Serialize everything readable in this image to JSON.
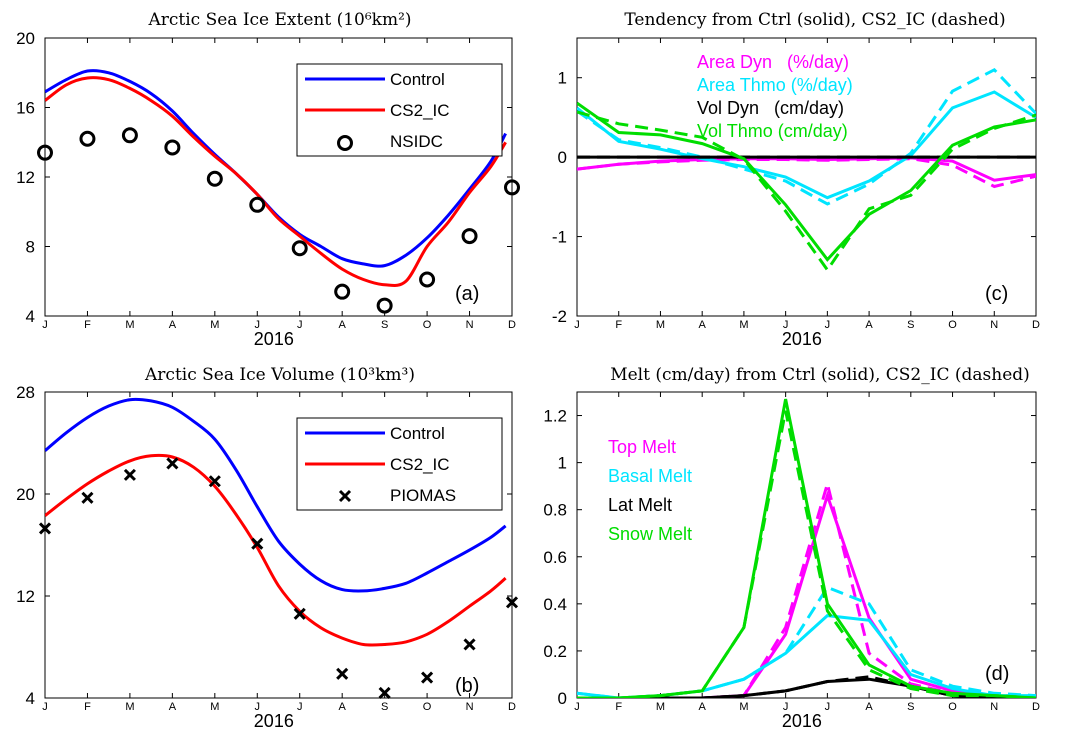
{
  "chart_data": [
    {
      "id": "a",
      "type": "line",
      "title": "Arctic Sea Ice Extent (10⁶km²)",
      "panel_label": "(a)",
      "xlabel": "2016",
      "month_ticks": [
        "J",
        "F",
        "M",
        "A",
        "M",
        "J",
        "J",
        "A",
        "S",
        "O",
        "N",
        "D"
      ],
      "xlim": [
        0,
        11
      ],
      "ylim": [
        4,
        20
      ],
      "yticks": [
        4,
        8,
        12,
        16,
        20
      ],
      "grid": false,
      "legend_placement": "top-right",
      "series": [
        {
          "name": "Control",
          "style": "line",
          "color": "#0000ff",
          "x": [
            0,
            0.5,
            1,
            1.5,
            2,
            2.5,
            3,
            3.5,
            4,
            4.5,
            5,
            5.5,
            6,
            6.5,
            7,
            7.5,
            8,
            8.5,
            9,
            9.5,
            10,
            10.5,
            10.85
          ],
          "y": [
            16.9,
            17.6,
            18.1,
            18.0,
            17.5,
            16.8,
            15.8,
            14.5,
            13.3,
            12.2,
            11.0,
            9.7,
            8.7,
            8.0,
            7.3,
            7.0,
            6.9,
            7.5,
            8.5,
            9.8,
            11.3,
            12.9,
            14.5
          ]
        },
        {
          "name": "CS2_IC",
          "style": "line",
          "color": "#ff0000",
          "x": [
            0,
            0.5,
            1,
            1.5,
            2,
            2.5,
            3,
            3.5,
            4,
            4.5,
            5,
            5.5,
            6,
            6.5,
            7,
            7.5,
            8,
            8.5,
            9,
            9.5,
            10,
            10.5,
            10.85
          ],
          "y": [
            16.4,
            17.3,
            17.7,
            17.6,
            17.1,
            16.4,
            15.5,
            14.3,
            13.2,
            12.2,
            11.0,
            9.6,
            8.6,
            7.6,
            6.7,
            6.1,
            5.8,
            6.0,
            8.0,
            9.4,
            11.1,
            12.6,
            14.0
          ]
        },
        {
          "name": "NSIDC",
          "style": "circle",
          "color": "#000000",
          "x": [
            0,
            1,
            2,
            3,
            4,
            5,
            6,
            7,
            8,
            9,
            10,
            11
          ],
          "y": [
            13.4,
            14.2,
            14.4,
            13.7,
            11.9,
            10.4,
            7.9,
            5.4,
            4.6,
            6.1,
            8.6,
            11.4
          ]
        }
      ]
    },
    {
      "id": "b",
      "type": "line",
      "title": "Arctic Sea Ice Volume (10³km³)",
      "panel_label": "(b)",
      "xlabel": "2016",
      "month_ticks": [
        "J",
        "F",
        "M",
        "A",
        "M",
        "J",
        "J",
        "A",
        "S",
        "O",
        "N",
        "D"
      ],
      "xlim": [
        0,
        11
      ],
      "ylim": [
        4,
        28
      ],
      "yticks": [
        4,
        12,
        20,
        28
      ],
      "grid": false,
      "legend_placement": "top-right",
      "series": [
        {
          "name": "Control",
          "style": "line",
          "color": "#0000ff",
          "x": [
            0,
            0.5,
            1,
            1.5,
            2,
            2.5,
            3,
            3.5,
            4,
            4.5,
            5,
            5.5,
            6,
            6.5,
            7,
            7.5,
            8,
            8.5,
            9,
            9.5,
            10,
            10.5,
            10.85
          ],
          "y": [
            23.4,
            24.8,
            26.0,
            26.9,
            27.4,
            27.3,
            26.8,
            25.7,
            24.3,
            21.9,
            19.0,
            16.3,
            14.5,
            13.2,
            12.5,
            12.4,
            12.6,
            13.0,
            13.8,
            14.7,
            15.6,
            16.6,
            17.5
          ]
        },
        {
          "name": "CS2_IC",
          "style": "line",
          "color": "#ff0000",
          "x": [
            0,
            0.5,
            1,
            1.5,
            2,
            2.5,
            3,
            3.5,
            4,
            4.5,
            5,
            5.5,
            6,
            6.5,
            7,
            7.5,
            8,
            8.5,
            9,
            9.5,
            10,
            10.5,
            10.85
          ],
          "y": [
            18.3,
            19.6,
            20.8,
            21.8,
            22.6,
            23.0,
            22.9,
            22.1,
            20.6,
            18.4,
            15.8,
            12.8,
            10.8,
            9.5,
            8.7,
            8.2,
            8.2,
            8.4,
            9.0,
            10.0,
            11.2,
            12.4,
            13.4
          ]
        },
        {
          "name": "PIOMAS",
          "style": "x",
          "color": "#000000",
          "x": [
            0,
            1,
            2,
            3,
            4,
            5,
            6,
            7,
            8,
            9,
            10,
            11
          ],
          "y": [
            17.3,
            19.7,
            21.5,
            22.4,
            21.0,
            16.1,
            10.6,
            5.9,
            4.4,
            5.6,
            8.2,
            11.5
          ]
        }
      ]
    },
    {
      "id": "c",
      "type": "line",
      "title": "Tendency from Ctrl (solid), CS2_IC (dashed)",
      "panel_label": "(c)",
      "xlabel": "2016",
      "month_ticks": [
        "J",
        "F",
        "M",
        "A",
        "M",
        "J",
        "J",
        "A",
        "S",
        "O",
        "N",
        "D"
      ],
      "xlim": [
        0,
        11
      ],
      "ylim": [
        -2,
        1.5
      ],
      "yticks": [
        -2,
        -1,
        0,
        1
      ],
      "grid": false,
      "legend_placement": "top-left inline text",
      "x": [
        0,
        1,
        2,
        3,
        4,
        5,
        6,
        7,
        8,
        9,
        10,
        11
      ],
      "series": [
        {
          "name": "Area Dyn   (%/day)",
          "color": "#ff00ff",
          "solid": [
            -0.15,
            -0.09,
            -0.05,
            -0.03,
            -0.02,
            -0.02,
            -0.03,
            -0.02,
            -0.01,
            -0.05,
            -0.29,
            -0.22
          ],
          "dashed": [
            -0.15,
            -0.09,
            -0.06,
            -0.04,
            -0.03,
            -0.03,
            -0.04,
            -0.03,
            -0.02,
            -0.1,
            -0.37,
            -0.24
          ]
        },
        {
          "name": "Area Thmo (%/day)",
          "color": "#00e5ff",
          "solid": [
            0.62,
            0.2,
            0.1,
            -0.02,
            -0.12,
            -0.25,
            -0.51,
            -0.3,
            0.02,
            0.62,
            0.82,
            0.5
          ],
          "dashed": [
            0.58,
            0.22,
            0.12,
            0.0,
            -0.15,
            -0.3,
            -0.59,
            -0.34,
            0.05,
            0.83,
            1.1,
            0.55
          ]
        },
        {
          "name": "Vol Dyn   (cm/day)",
          "color": "#000000",
          "solid": [
            0.0,
            0.0,
            0.0,
            0.0,
            0.0,
            0.0,
            0.0,
            0.0,
            0.0,
            0.0,
            0.0,
            0.0
          ],
          "dashed": [
            0.0,
            0.0,
            0.0,
            0.0,
            0.0,
            0.0,
            0.0,
            0.0,
            0.0,
            0.0,
            0.0,
            0.0
          ]
        },
        {
          "name": "Vol Thmo (cm/day)",
          "color": "#00dd00",
          "solid": [
            0.68,
            0.31,
            0.28,
            0.17,
            -0.02,
            -0.6,
            -1.29,
            -0.72,
            -0.42,
            0.15,
            0.38,
            0.47
          ],
          "dashed": [
            0.57,
            0.42,
            0.34,
            0.25,
            -0.03,
            -0.68,
            -1.42,
            -0.65,
            -0.48,
            0.1,
            0.36,
            0.53
          ]
        }
      ]
    },
    {
      "id": "d",
      "type": "line",
      "title": "Melt (cm/day) from Ctrl (solid), CS2_IC (dashed)",
      "panel_label": "(d)",
      "xlabel": "2016",
      "month_ticks": [
        "J",
        "F",
        "M",
        "A",
        "M",
        "J",
        "J",
        "A",
        "S",
        "O",
        "N",
        "D"
      ],
      "xlim": [
        0,
        11
      ],
      "ylim": [
        0,
        1.3
      ],
      "yticks": [
        0,
        0.2,
        0.4,
        0.6,
        0.8,
        1,
        1.2
      ],
      "grid": false,
      "legend_placement": "left inline text",
      "x": [
        0,
        1,
        2,
        3,
        4,
        5,
        6,
        7,
        8,
        9,
        10,
        11
      ],
      "series": [
        {
          "name": "Top Melt",
          "color": "#ff00ff",
          "solid": [
            0.0,
            0.0,
            0.0,
            0.0,
            0.01,
            0.27,
            0.86,
            0.34,
            0.08,
            0.03,
            0.01,
            0.0
          ],
          "dashed": [
            0.0,
            0.0,
            0.0,
            0.0,
            0.01,
            0.3,
            0.91,
            0.19,
            0.06,
            0.02,
            0.01,
            0.0
          ]
        },
        {
          "name": "Basal Melt",
          "color": "#00e5ff",
          "solid": [
            0.02,
            0.0,
            0.01,
            0.03,
            0.08,
            0.19,
            0.35,
            0.33,
            0.1,
            0.04,
            0.01,
            0.01
          ],
          "dashed": [
            0.02,
            0.0,
            0.01,
            0.03,
            0.08,
            0.19,
            0.47,
            0.4,
            0.12,
            0.05,
            0.02,
            0.01
          ]
        },
        {
          "name": "Lat Melt",
          "color": "#000000",
          "solid": [
            0.0,
            0.0,
            0.0,
            0.0,
            0.01,
            0.03,
            0.07,
            0.08,
            0.05,
            0.01,
            0.0,
            0.0
          ],
          "dashed": [
            0.0,
            0.0,
            0.0,
            0.0,
            0.01,
            0.03,
            0.07,
            0.09,
            0.05,
            0.01,
            0.0,
            0.0
          ]
        },
        {
          "name": "Snow Melt",
          "color": "#00dd00",
          "solid": [
            0.0,
            0.0,
            0.01,
            0.03,
            0.3,
            1.27,
            0.4,
            0.14,
            0.05,
            0.02,
            0.01,
            0.0
          ],
          "dashed": [
            0.0,
            0.0,
            0.01,
            0.03,
            0.3,
            1.22,
            0.37,
            0.12,
            0.04,
            0.01,
            0.01,
            0.0
          ]
        }
      ]
    }
  ]
}
